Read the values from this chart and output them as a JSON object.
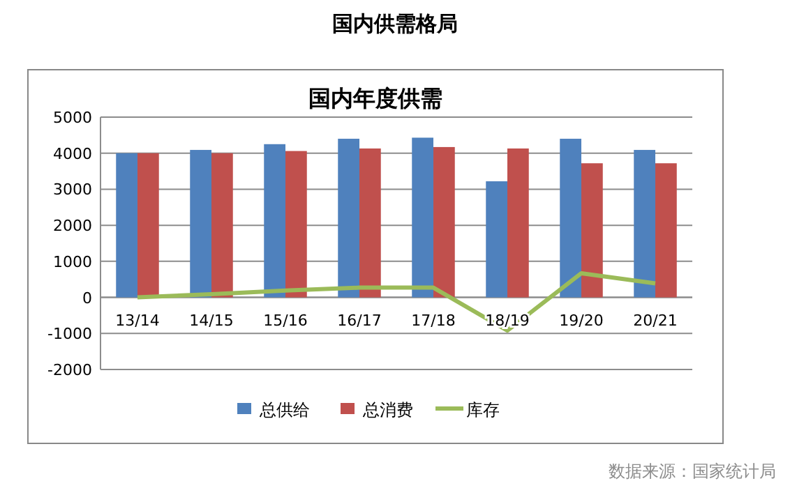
{
  "chart_data": {
    "type": "bar",
    "title": "国内年度供需",
    "subtitle": "国内供需格局",
    "categories": [
      "13/14",
      "14/15",
      "15/16",
      "16/17",
      "17/18",
      "18/19",
      "19/20",
      "20/21"
    ],
    "series": [
      {
        "name": "总供给",
        "color": "#4f81bd",
        "values": [
          4000,
          4090,
          4250,
          4400,
          4430,
          3220,
          4400,
          4090
        ]
      },
      {
        "name": "总消费",
        "color": "#c0504d",
        "values": [
          4000,
          4000,
          4060,
          4130,
          4170,
          4130,
          3720,
          3720
        ]
      },
      {
        "name": "库存",
        "type": "line",
        "color": "#9bbb59",
        "values": [
          0,
          90,
          190,
          270,
          270,
          -920,
          670,
          390
        ]
      }
    ],
    "ylim": [
      -2000,
      5000
    ],
    "yticks": [
      -2000,
      -1000,
      0,
      1000,
      2000,
      3000,
      4000,
      5000
    ],
    "grid": "y",
    "legend": "bottom",
    "marker": "none",
    "annotations": [
      "数据来源：国家统计局"
    ]
  }
}
